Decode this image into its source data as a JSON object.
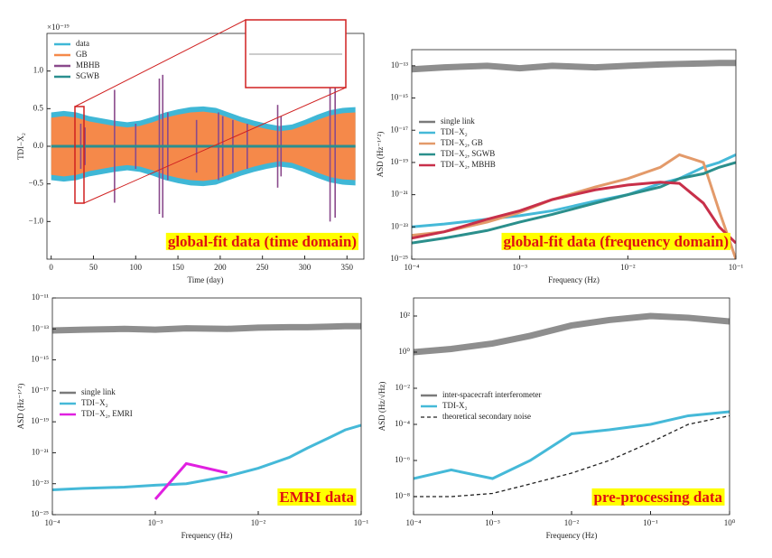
{
  "chart_data": [
    {
      "type": "line",
      "y_multiplier": "×10⁻¹⁹",
      "xlabel": "Time (day)",
      "ylabel": "TDI−X₂",
      "annotation": "global-fit data (time domain)",
      "legend": "upper left",
      "log_x": false,
      "log_y": false,
      "xlim": [
        -5,
        370
      ],
      "xticks": [
        0,
        50,
        100,
        150,
        200,
        250,
        300,
        350
      ],
      "ylim": [
        -1.5,
        1.5
      ],
      "yticks": [
        {
          "value": -1.0,
          "label": "−1.0"
        },
        {
          "value": -0.5,
          "label": "−0.5"
        },
        {
          "value": 0.0,
          "label": "0.0"
        },
        {
          "value": 0.5,
          "label": "0.5"
        },
        {
          "value": 1.0,
          "label": "1.0"
        }
      ],
      "x": [
        0,
        15,
        30,
        45,
        60,
        75,
        90,
        105,
        120,
        135,
        150,
        165,
        180,
        195,
        210,
        225,
        240,
        255,
        270,
        285,
        300,
        315,
        330,
        345,
        360
      ],
      "series": [
        {
          "name": "data",
          "color": "#3fb7d6",
          "style": "band",
          "values": [
            0.45,
            0.47,
            0.45,
            0.4,
            0.37,
            0.34,
            0.32,
            0.34,
            0.39,
            0.45,
            0.49,
            0.52,
            0.53,
            0.51,
            0.45,
            0.39,
            0.34,
            0.3,
            0.27,
            0.29,
            0.35,
            0.42,
            0.48,
            0.51,
            0.52
          ]
        },
        {
          "name": "GB",
          "color": "#f5894a",
          "style": "band",
          "values": [
            0.38,
            0.4,
            0.38,
            0.33,
            0.3,
            0.27,
            0.25,
            0.27,
            0.32,
            0.38,
            0.42,
            0.45,
            0.46,
            0.44,
            0.38,
            0.32,
            0.27,
            0.23,
            0.2,
            0.22,
            0.28,
            0.35,
            0.41,
            0.44,
            0.45
          ]
        },
        {
          "name": "MBHB",
          "color": "#8a4a8c",
          "style": "spikes",
          "x": [
            35,
            40,
            75,
            100,
            128,
            132,
            138,
            172,
            198,
            203,
            215,
            232,
            268,
            272,
            330,
            336
          ],
          "values": [
            0.3,
            0.25,
            0.75,
            0.3,
            0.9,
            0.95,
            0.45,
            0.35,
            0.45,
            0.4,
            0.35,
            0.3,
            0.55,
            0.4,
            1.0,
            0.95
          ]
        },
        {
          "name": "SGWB",
          "color": "#2a8f8f",
          "style": "line",
          "values": [
            0,
            0,
            0,
            0,
            0,
            0,
            0,
            0,
            0,
            0,
            0,
            0,
            0,
            0,
            0,
            0,
            0,
            0,
            0,
            0,
            0,
            0,
            0,
            0,
            0
          ]
        }
      ]
    },
    {
      "type": "line",
      "xlabel": "Frequency (Hz)",
      "ylabel": "ASD (Hz⁻¹ᐟ²)",
      "annotation": "global-fit data (frequency domain)",
      "legend": "center left",
      "log_x": true,
      "log_y": true,
      "xlim": [
        0.0001,
        0.1
      ],
      "xticks": [
        {
          "value": 0.0001,
          "label": "10⁻⁴"
        },
        {
          "value": 0.001,
          "label": "10⁻³"
        },
        {
          "value": 0.01,
          "label": "10⁻²"
        },
        {
          "value": 0.1,
          "label": "10⁻¹"
        }
      ],
      "ylim": [
        1e-25,
        1e-12
      ],
      "yticks": [
        {
          "value": 1e-25,
          "label": "10⁻²⁵"
        },
        {
          "value": 1e-23,
          "label": "10⁻²³"
        },
        {
          "value": 1e-21,
          "label": "10⁻²¹"
        },
        {
          "value": 1e-19,
          "label": "10⁻¹⁹"
        },
        {
          "value": 1e-17,
          "label": "10⁻¹⁷"
        },
        {
          "value": 1e-15,
          "label": "10⁻¹⁵"
        },
        {
          "value": 1e-13,
          "label": "10⁻¹³"
        }
      ],
      "x": [
        0.0001,
        0.0002,
        0.0005,
        0.001,
        0.002,
        0.005,
        0.01,
        0.02,
        0.03,
        0.05,
        0.07,
        0.1
      ],
      "series": [
        {
          "name": "single link",
          "color": "#7a7a7a",
          "style": "line",
          "values": [
            6e-14,
            8e-14,
            1e-13,
            7e-14,
            1e-13,
            8e-14,
            1e-13,
            1.2e-13,
            1.3e-13,
            1.4e-13,
            1.5e-13,
            1.5e-13
          ]
        },
        {
          "name": "TDI−X₂",
          "color": "#45b9d8",
          "style": "line",
          "values": [
            1e-23,
            1.5e-23,
            3e-23,
            5e-23,
            1e-22,
            4e-22,
            1e-21,
            5e-21,
            1e-20,
            5e-20,
            1e-19,
            3e-19
          ]
        },
        {
          "name": "TDI−X₂, GB",
          "color": "#e39a6a",
          "style": "line",
          "values": [
            3e-24,
            5e-24,
            2e-23,
            8e-23,
            5e-22,
            3e-21,
            1e-20,
            5e-20,
            3e-19,
            1e-19,
            1e-22,
            1e-25
          ]
        },
        {
          "name": "TDI−X₂, SGWB",
          "color": "#2b8f8c",
          "style": "line",
          "values": [
            1e-24,
            2e-24,
            6e-24,
            2e-23,
            6e-23,
            3e-22,
            1e-21,
            3e-21,
            1e-20,
            2e-20,
            5e-20,
            1e-19
          ]
        },
        {
          "name": "TDI−X₂, MBHB",
          "color": "#c8304a",
          "style": "line",
          "values": [
            2e-24,
            5e-24,
            3e-23,
            1e-22,
            5e-22,
            2e-21,
            4e-21,
            6e-21,
            5e-21,
            3e-22,
            1e-23,
            1e-24
          ]
        }
      ]
    },
    {
      "type": "line",
      "xlabel": "Frequency (Hz)",
      "ylabel": "ASD (Hz⁻¹ᐟ²)",
      "annotation": "EMRI data",
      "legend": "center left",
      "log_x": true,
      "log_y": true,
      "xlim": [
        0.0001,
        0.1
      ],
      "xticks": [
        {
          "value": 0.0001,
          "label": "10⁻⁴"
        },
        {
          "value": 0.001,
          "label": "10⁻³"
        },
        {
          "value": 0.01,
          "label": "10⁻²"
        },
        {
          "value": 0.1,
          "label": "10⁻¹"
        }
      ],
      "ylim": [
        1e-25,
        1e-11
      ],
      "yticks": [
        {
          "value": 1e-25,
          "label": "10⁻²⁵"
        },
        {
          "value": 1e-23,
          "label": "10⁻²³"
        },
        {
          "value": 1e-21,
          "label": "10⁻²¹"
        },
        {
          "value": 1e-19,
          "label": "10⁻¹⁹"
        },
        {
          "value": 1e-17,
          "label": "10⁻¹⁷"
        },
        {
          "value": 1e-15,
          "label": "10⁻¹⁵"
        },
        {
          "value": 1e-13,
          "label": "10⁻¹³"
        },
        {
          "value": 1e-11,
          "label": "10⁻¹¹"
        }
      ],
      "x": [
        0.0001,
        0.0002,
        0.0005,
        0.001,
        0.002,
        0.005,
        0.01,
        0.02,
        0.03,
        0.05,
        0.07,
        0.1
      ],
      "series": [
        {
          "name": "single link",
          "color": "#7a7a7a",
          "style": "line",
          "values": [
            8e-14,
            9e-14,
            1e-13,
            9e-14,
            1.1e-13,
            1e-13,
            1.2e-13,
            1.3e-13,
            1.3e-13,
            1.4e-13,
            1.5e-13,
            1.5e-13
          ]
        },
        {
          "name": "TDI−X₂",
          "color": "#45b9d8",
          "style": "line",
          "values": [
            4e-24,
            5e-24,
            6e-24,
            8e-24,
            1e-23,
            3e-23,
            1e-22,
            5e-22,
            2e-21,
            1e-20,
            3e-20,
            6e-20
          ]
        },
        {
          "name": "TDI−X₂, EMRI",
          "color": "#e020e0",
          "style": "line",
          "values": [
            null,
            null,
            null,
            1e-24,
            2e-22,
            5e-23,
            null,
            null,
            null,
            null,
            null,
            null
          ]
        }
      ]
    },
    {
      "type": "line",
      "xlabel": "Frequency (Hz)",
      "ylabel": "ASD (Hz/√Hz)",
      "annotation": "pre-processing data",
      "legend": "center left",
      "log_x": true,
      "log_y": true,
      "xlim": [
        0.0001,
        1
      ],
      "xticks": [
        {
          "value": 0.0001,
          "label": "10⁻⁴"
        },
        {
          "value": 0.001,
          "label": "10⁻³"
        },
        {
          "value": 0.01,
          "label": "10⁻²"
        },
        {
          "value": 0.1,
          "label": "10⁻¹"
        },
        {
          "value": 1,
          "label": "10⁰"
        }
      ],
      "ylim": [
        1e-09,
        1000
      ],
      "yticks": [
        {
          "value": 1e-08,
          "label": "10⁻⁸"
        },
        {
          "value": 1e-06,
          "label": "10⁻⁶"
        },
        {
          "value": 0.0001,
          "label": "10⁻⁴"
        },
        {
          "value": 0.01,
          "label": "10⁻²"
        },
        {
          "value": 1,
          "label": "10⁰"
        },
        {
          "value": 100,
          "label": "10²"
        }
      ],
      "x": [
        0.0001,
        0.0003,
        0.001,
        0.003,
        0.01,
        0.03,
        0.1,
        0.3,
        1
      ],
      "series": [
        {
          "name": "inter-spacecraft interferometer",
          "color": "#7a7a7a",
          "style": "line",
          "values": [
            1,
            1.5,
            3,
            8,
            30,
            60,
            100,
            80,
            50
          ]
        },
        {
          "name": "TDI-X₂",
          "color": "#45b9d8",
          "style": "line",
          "values": [
            1e-07,
            3e-07,
            1e-07,
            1e-06,
            3e-05,
            5e-05,
            0.0001,
            0.0003,
            0.0005
          ]
        },
        {
          "name": "theoretical secondary noise",
          "color": "#222222",
          "style": "dashed",
          "values": [
            1e-08,
            1e-08,
            1.5e-08,
            5e-08,
            2e-07,
            1e-06,
            1e-05,
            0.0001,
            0.0003
          ]
        }
      ]
    }
  ]
}
